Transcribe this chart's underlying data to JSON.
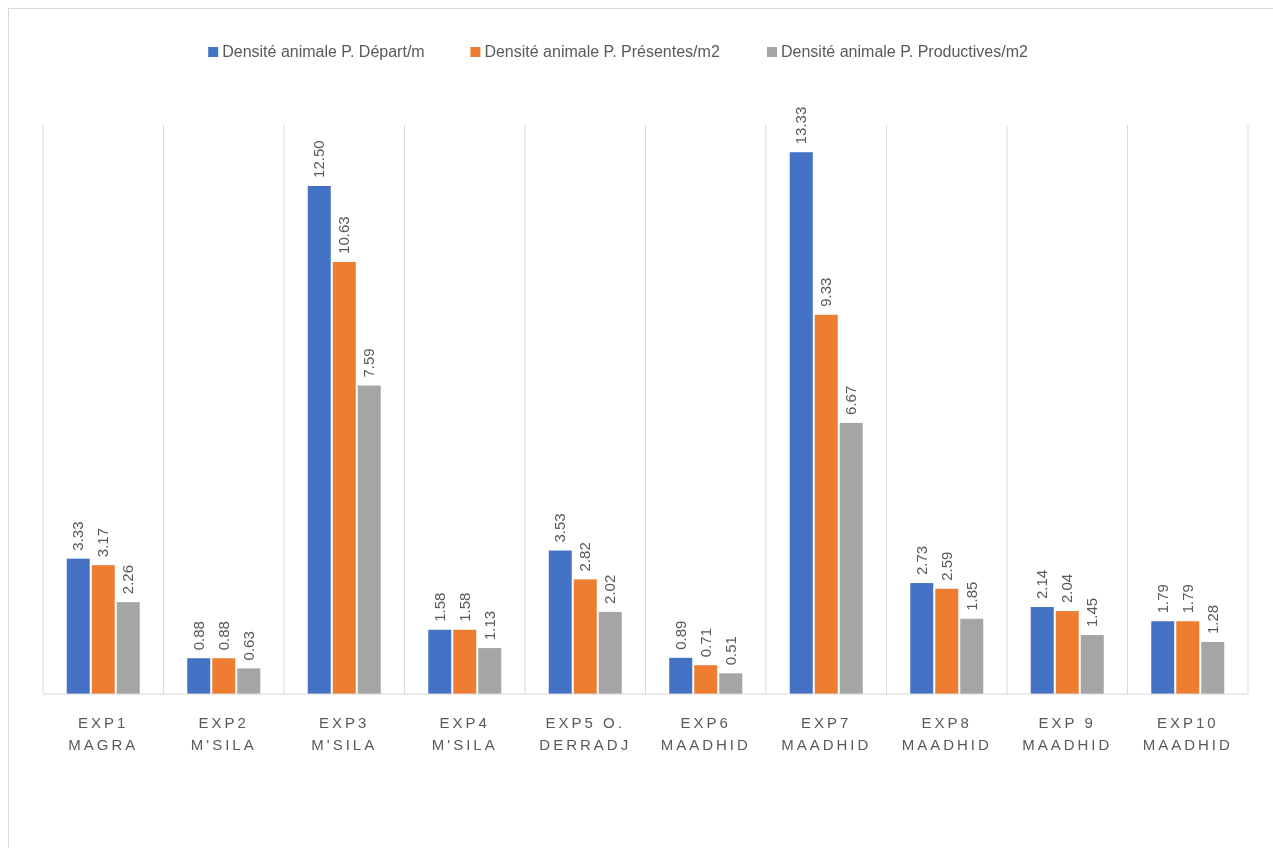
{
  "chart_data": {
    "type": "bar",
    "categories": [
      "EXP1 MAGRA",
      "EXP2 M'SILA",
      "EXP3 M'SILA",
      "EXP4 M'SILA",
      "EXP5 O. DERRADJ",
      "EXP6 MAADHID",
      "EXP7 MAADHID",
      "EXP8 MAADHID",
      "EXP 9 MAADHID",
      "EXP10 MAADHID"
    ],
    "series": [
      {
        "name": "Densité animale P. Départ/m",
        "color": "#4472c4",
        "values": [
          3.33,
          0.88,
          12.5,
          1.58,
          3.53,
          0.89,
          13.33,
          2.73,
          2.14,
          1.79
        ],
        "value_labels": [
          "3.33",
          "0.88",
          "12.50",
          "1.58",
          "3.53",
          "0.89",
          "13.33",
          "2.73",
          "2.14",
          "1.79"
        ]
      },
      {
        "name": "Densité animale P. Présentes/m2",
        "color": "#ed7d31",
        "values": [
          3.17,
          0.88,
          10.63,
          1.58,
          2.82,
          0.71,
          9.33,
          2.59,
          2.04,
          1.79
        ],
        "value_labels": [
          "3.17",
          "0.88",
          "10.63",
          "1.58",
          "2.82",
          "0.71",
          "9.33",
          "2.59",
          "2.04",
          "1.79"
        ]
      },
      {
        "name": "Densité animale P. Productives/m2",
        "color": "#a5a5a5",
        "values": [
          2.26,
          0.63,
          7.59,
          1.13,
          2.02,
          0.51,
          6.67,
          1.85,
          1.45,
          1.28
        ],
        "value_labels": [
          "2.26",
          "0.63",
          "7.59",
          "1.13",
          "2.02",
          "0.51",
          "6.67",
          "1.85",
          "1.45",
          "1.28"
        ]
      }
    ],
    "ylim": [
      0,
      14
    ],
    "grid": "x",
    "legend": "top",
    "tick_labels": "x"
  }
}
